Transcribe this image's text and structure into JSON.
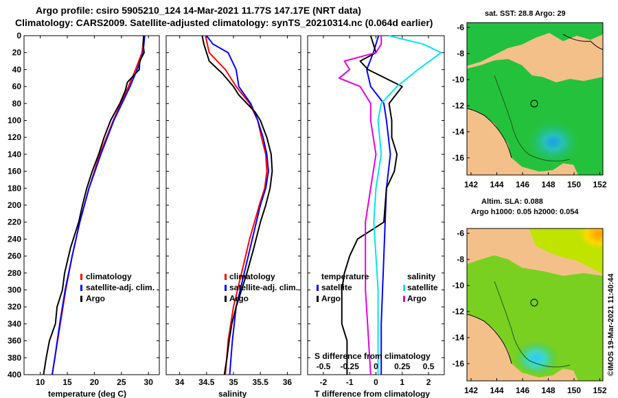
{
  "header": {
    "line1": "Argo profile: csiro 5905210_124 14-Mar-2021 11.77S 147.17E (NRT data)",
    "line2": "Climatology: CARS2009. Satellite-adjusted climatology: synTS_20210314.nc (0.064d earlier)"
  },
  "colors": {
    "climatology": "#ff0000",
    "satellite": "#0000ff",
    "argo": "#000000",
    "sal_satellite": "#00e5ee",
    "sal_argo": "#e000e0",
    "land": "#f4c08a"
  },
  "chart_data": [
    {
      "type": "line",
      "id": "temperature",
      "xlabel": "temperature (deg C)",
      "ylabel": "",
      "xlim": [
        7,
        32
      ],
      "ylim": [
        400,
        0
      ],
      "xticks": [
        10,
        15,
        20,
        25,
        30
      ],
      "yticks": [
        0,
        20,
        40,
        60,
        80,
        100,
        120,
        140,
        160,
        180,
        200,
        220,
        240,
        260,
        280,
        300,
        320,
        340,
        360,
        380,
        400
      ],
      "legend": [
        "climatology",
        "satellite-adj. clim.",
        "Argo"
      ],
      "series": [
        {
          "name": "climatology",
          "depth": [
            0,
            20,
            40,
            60,
            80,
            100,
            140,
            180,
            220,
            260,
            300,
            340,
            380,
            400
          ],
          "values": [
            29.2,
            28.8,
            27.6,
            26.3,
            24.9,
            23.5,
            21.0,
            19.0,
            17.3,
            15.9,
            14.7,
            13.7,
            12.7,
            12.2
          ]
        },
        {
          "name": "satellite-adj. clim.",
          "depth": [
            0,
            20,
            40,
            60,
            80,
            100,
            140,
            180,
            220,
            260,
            300,
            340,
            380,
            400
          ],
          "values": [
            29.3,
            29.0,
            27.9,
            26.6,
            25.1,
            23.6,
            21.2,
            19.0,
            17.3,
            15.9,
            14.6,
            13.6,
            12.7,
            12.2
          ]
        },
        {
          "name": "Argo",
          "depth": [
            0,
            10,
            20,
            30,
            40,
            55,
            65,
            80,
            100,
            120,
            140,
            160,
            180,
            200,
            220,
            250,
            280,
            300,
            320,
            340,
            360,
            380,
            400
          ],
          "values": [
            29.1,
            29.0,
            29.2,
            28.4,
            28.3,
            26.1,
            25.7,
            24.7,
            23.0,
            21.8,
            20.8,
            19.6,
            18.6,
            17.8,
            17.1,
            15.6,
            14.5,
            14.1,
            13.1,
            12.8,
            11.7,
            11.1,
            10.6
          ]
        }
      ]
    },
    {
      "type": "line",
      "id": "salinity",
      "xlabel": "salinity",
      "ylabel": "",
      "xlim": [
        33.75,
        36.25
      ],
      "ylim": [
        400,
        0
      ],
      "xticks": [
        34,
        34.5,
        35,
        35.5,
        36
      ],
      "legend": [
        "climatology",
        "satellite-adj. clim.",
        "Argo"
      ],
      "series": [
        {
          "name": "climatology",
          "depth": [
            0,
            20,
            40,
            60,
            80,
            100,
            120,
            140,
            160,
            180,
            200,
            240,
            280,
            320,
            360,
            400
          ],
          "values": [
            34.48,
            34.55,
            34.85,
            35.05,
            35.3,
            35.45,
            35.52,
            35.6,
            35.62,
            35.58,
            35.48,
            35.3,
            35.15,
            35.0,
            34.9,
            34.85
          ]
        },
        {
          "name": "satellite-adj. clim.",
          "depth": [
            0,
            10,
            20,
            40,
            60,
            80,
            100,
            120,
            140,
            160,
            180,
            200,
            240,
            280,
            320,
            360,
            400
          ],
          "values": [
            34.5,
            34.62,
            34.9,
            35.05,
            35.1,
            35.32,
            35.45,
            35.55,
            35.62,
            35.65,
            35.6,
            35.5,
            35.35,
            35.2,
            35.05,
            34.98,
            34.93
          ]
        },
        {
          "name": "Argo",
          "depth": [
            0,
            10,
            20,
            30,
            45,
            60,
            70,
            80,
            90,
            100,
            120,
            140,
            160,
            180,
            200,
            220,
            250,
            280,
            300,
            320,
            340,
            360,
            380,
            400
          ],
          "values": [
            34.42,
            34.45,
            34.5,
            34.55,
            34.8,
            35.0,
            35.1,
            35.25,
            35.4,
            35.5,
            35.62,
            35.7,
            35.72,
            35.68,
            35.6,
            35.5,
            35.38,
            35.25,
            35.15,
            35.05,
            34.97,
            34.92,
            34.88,
            34.83
          ]
        }
      ]
    },
    {
      "type": "line",
      "id": "differences",
      "xlabel": "T difference from climatology",
      "xlim": [
        -2.6,
        2.6
      ],
      "ylim": [
        400,
        0
      ],
      "xticks": [
        -2,
        -1,
        0,
        1,
        2
      ],
      "top_axis": {
        "label": "S difference from climatology",
        "xlim": [
          -0.65,
          0.65
        ],
        "xticks": [
          -0.5,
          -0.25,
          0,
          0.25,
          0.5
        ],
        "tick_labels": [
          "-0.5",
          "-0.25",
          "0",
          "0.25",
          "0.5"
        ]
      },
      "legend_temperature_title": "temperature",
      "legend_salinity_title": "salinity",
      "legend_temperature": [
        "satellite",
        "Argo"
      ],
      "legend_salinity": [
        "satellite",
        "Argo"
      ],
      "series": [
        {
          "name": "temperature satellite",
          "axis": "T",
          "depth": [
            0,
            20,
            40,
            60,
            80,
            100,
            140,
            180,
            220,
            260,
            300,
            340,
            380,
            400
          ],
          "values": [
            0.1,
            -0.1,
            -0.35,
            -0.2,
            0.3,
            0.4,
            0.55,
            0.4,
            0.35,
            0.3,
            0.25,
            0.2,
            0.2,
            0.2
          ]
        },
        {
          "name": "temperature Argo",
          "axis": "T",
          "depth": [
            0,
            10,
            20,
            30,
            40,
            60,
            80,
            100,
            120,
            140,
            160,
            180,
            220,
            240,
            260,
            280,
            300,
            340,
            360,
            400
          ],
          "values": [
            -0.2,
            -0.1,
            0.0,
            -0.6,
            -0.3,
            1.0,
            0.5,
            0.6,
            0.6,
            0.8,
            0.7,
            0.4,
            0.3,
            -0.7,
            -1.0,
            -1.2,
            -1.3,
            -1.3,
            -1.1,
            -1.1
          ]
        },
        {
          "name": "salinity satellite",
          "axis": "S",
          "depth": [
            0,
            10,
            20,
            40,
            60,
            80,
            100,
            140,
            180,
            220,
            260,
            300,
            340,
            380,
            400
          ],
          "values": [
            0.12,
            0.45,
            0.62,
            0.4,
            0.2,
            0.05,
            0.02,
            0.05,
            0.0,
            -0.02,
            0.0,
            0.02,
            0.02,
            0.02,
            0.02
          ]
        },
        {
          "name": "salinity Argo",
          "axis": "S",
          "depth": [
            0,
            10,
            20,
            30,
            40,
            50,
            60,
            80,
            100,
            140,
            180,
            220,
            260,
            300,
            340,
            400
          ],
          "values": [
            0.05,
            0.05,
            0.0,
            -0.3,
            -0.25,
            -0.35,
            -0.15,
            -0.05,
            -0.05,
            0.0,
            -0.05,
            -0.1,
            -0.1,
            -0.1,
            -0.08,
            -0.05
          ]
        }
      ]
    }
  ],
  "maps": [
    {
      "title": "sat. SST: 28.8 Argo: 29",
      "yticks": [
        "-6",
        "-8",
        "-10",
        "-12",
        "-14",
        "-16"
      ],
      "xticks": [
        "142",
        "144",
        "146",
        "148",
        "150",
        "152"
      ]
    },
    {
      "title1": "Altim. SLA: 0.088",
      "title2": "Argo h1000: 0.05 h2000: 0.054",
      "yticks": [
        "-6",
        "-8",
        "-10",
        "-12",
        "-14",
        "-16"
      ],
      "xticks": [
        "142",
        "144",
        "146",
        "148",
        "150",
        "152"
      ]
    }
  ],
  "footer": {
    "credit": "©IMOS 19-Mar-2021 11:40:44"
  }
}
